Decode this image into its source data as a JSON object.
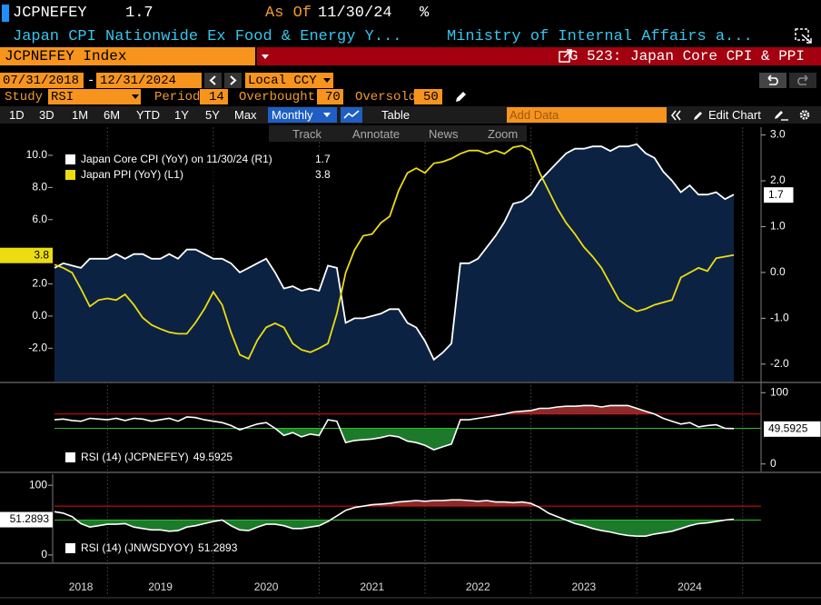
{
  "header": {
    "ticker": "JCPNEFEY",
    "last": 1.7,
    "as_of_label": "As Of",
    "as_of": "11/30/24",
    "unit": "%",
    "description": "Japan CPI Nationwide Ex Food & Energy Y...",
    "source": "Ministry of Internal Affairs a...",
    "security": "JCPNEFEY Index",
    "chart_name": "G 523: Japan Core CPI & PPI"
  },
  "range": {
    "start": "07/31/2018",
    "separator": "-",
    "end": "12/31/2024",
    "currency": "Local CCY"
  },
  "study": {
    "label": "Study",
    "name": "RSI",
    "period_label": "Period",
    "period": 14,
    "overbought_label": "Overbought",
    "overbought": 70,
    "oversold_label": "Oversold",
    "oversold": 50
  },
  "toolbar": {
    "periods": [
      "1D",
      "3D",
      "1M",
      "6M",
      "YTD",
      "1Y",
      "5Y",
      "Max"
    ],
    "frequency": "Monthly",
    "table": "Table",
    "add_data": "Add Data",
    "edit_chart": "Edit Chart"
  },
  "tools": [
    "Track",
    "Annotate",
    "News",
    "Zoom"
  ],
  "time_axis": [
    "2018",
    "2019",
    "2020",
    "2021",
    "2022",
    "2023",
    "2024"
  ],
  "chart_data": [
    {
      "type": "line",
      "yaxis_side": "left",
      "series": [
        {
          "name": "Japan Core CPI (YoY) on 11/30/24 (R1)",
          "color": "#ffffff",
          "fill": "#0c2242",
          "axis": "y2",
          "values": [
            0.1,
            0.2,
            0.15,
            0.1,
            0.3,
            0.3,
            0.3,
            0.4,
            0.3,
            0.4,
            0.4,
            0.3,
            0.3,
            0.4,
            0.3,
            0.5,
            0.5,
            0.4,
            0.3,
            0.3,
            0.2,
            0,
            0.1,
            0.2,
            0.3,
            0,
            -0.35,
            -0.3,
            -0.4,
            -0.35,
            -0.4,
            0.15,
            0.1,
            -1.1,
            -1.0,
            -1.0,
            -0.95,
            -0.9,
            -0.8,
            -0.8,
            -1.1,
            -1.2,
            -1.5,
            -1.9,
            -1.75,
            -1.55,
            0.2,
            0.2,
            0.3,
            0.55,
            0.8,
            1.1,
            1.5,
            1.55,
            1.7,
            2.0,
            2.2,
            2.4,
            2.6,
            2.7,
            2.7,
            2.75,
            2.75,
            2.65,
            2.75,
            2.75,
            2.8,
            2.6,
            2.5,
            2.2,
            2.0,
            1.75,
            1.9,
            1.7,
            1.7,
            1.75,
            1.6,
            1.7
          ]
        },
        {
          "name": "Japan PPI (YoY) (L1)",
          "color": "#ecdc12",
          "values": [
            3.2,
            3.0,
            2.7,
            1.7,
            0.6,
            1.0,
            1.1,
            1.0,
            1.35,
            0.7,
            -0.1,
            -0.55,
            -0.8,
            -1.0,
            -1.1,
            -1.1,
            -0.4,
            0.45,
            1.5,
            0.7,
            -1.0,
            -2.4,
            -2.65,
            -1.5,
            -0.7,
            -0.45,
            -0.7,
            -1.7,
            -2.1,
            -2.25,
            -2.0,
            -1.7,
            0.15,
            2.7,
            4.1,
            5.0,
            5.1,
            5.8,
            6.2,
            7.8,
            8.9,
            9.2,
            8.9,
            9.5,
            9.6,
            9.8,
            10.1,
            10.3,
            10.3,
            10.1,
            10.3,
            10.1,
            10.5,
            10.6,
            10.3,
            8.9,
            7.8,
            6.7,
            5.8,
            5.1,
            4.3,
            3.7,
            3.0,
            2.0,
            1.0,
            0.6,
            0.3,
            0.45,
            0.7,
            0.85,
            1.0,
            2.4,
            2.7,
            3.0,
            2.8,
            3.6,
            3.7,
            3.8
          ]
        }
      ],
      "ylim": [
        -4.07,
        11.75
      ],
      "yticks": [
        {
          "value": 10,
          "label": "10.0"
        },
        {
          "value": 8,
          "label": "8.0"
        },
        {
          "value": 6,
          "label": "6.0"
        },
        {
          "value": 2,
          "label": "2.0"
        },
        {
          "value": 0,
          "label": "0.0"
        },
        {
          "value": -2,
          "label": "-2.0"
        }
      ],
      "y2lim": [
        -2.38,
        3.17
      ],
      "y2ticks": [
        {
          "value": 3,
          "label": "3.0"
        },
        {
          "value": 2,
          "label": "2.0"
        },
        {
          "value": 1,
          "label": "1.0"
        },
        {
          "value": 0,
          "label": "0.0"
        },
        {
          "value": -1,
          "label": "-1.0"
        },
        {
          "value": -2,
          "label": "-2.0"
        }
      ]
    },
    {
      "type": "rsi",
      "yaxis_side": "right",
      "series": [
        {
          "name": "RSI (14) (JCPNEFEY)",
          "color": "#ffffff",
          "values": [
            62,
            63,
            61,
            60,
            64,
            63,
            62,
            64,
            61,
            64,
            63,
            60,
            62,
            64,
            60,
            66,
            65,
            62,
            60,
            58,
            54,
            48,
            52,
            56,
            58,
            50,
            40,
            44,
            38,
            42,
            40,
            62,
            60,
            30,
            33,
            34,
            35,
            37,
            40,
            38,
            32,
            30,
            26,
            20,
            24,
            28,
            62,
            62,
            64,
            66,
            68,
            70,
            73,
            74,
            75,
            78,
            78,
            80,
            81,
            81,
            82,
            82,
            80,
            82,
            82,
            82,
            78,
            74,
            70,
            64,
            60,
            56,
            58,
            52,
            54,
            55,
            50,
            49.5925
          ]
        }
      ],
      "ylim": [
        -10.5,
        111.8
      ],
      "yticks": [
        100,
        0
      ]
    },
    {
      "type": "rsi",
      "yaxis_side": "left",
      "series": [
        {
          "name": "RSI (14) (JNWSDYOY)",
          "color": "#ffffff",
          "values": [
            62,
            60,
            55,
            45,
            40,
            42,
            44,
            44,
            45,
            40,
            38,
            36,
            36,
            34,
            35,
            40,
            42,
            45,
            48,
            50,
            42,
            36,
            35,
            40,
            44,
            44,
            42,
            38,
            38,
            40,
            42,
            48,
            56,
            64,
            68,
            70,
            72,
            73,
            74,
            76,
            77,
            78,
            77,
            78,
            78,
            79,
            79,
            78,
            77,
            78,
            76,
            76,
            75,
            76,
            74,
            68,
            60,
            55,
            50,
            45,
            42,
            38,
            35,
            33,
            30,
            28,
            27,
            27,
            30,
            32,
            34,
            38,
            42,
            45,
            46,
            48,
            50,
            51.2893
          ]
        }
      ],
      "ylim": [
        -10.5,
        115.8
      ],
      "yticks": [
        100,
        0
      ]
    }
  ]
}
